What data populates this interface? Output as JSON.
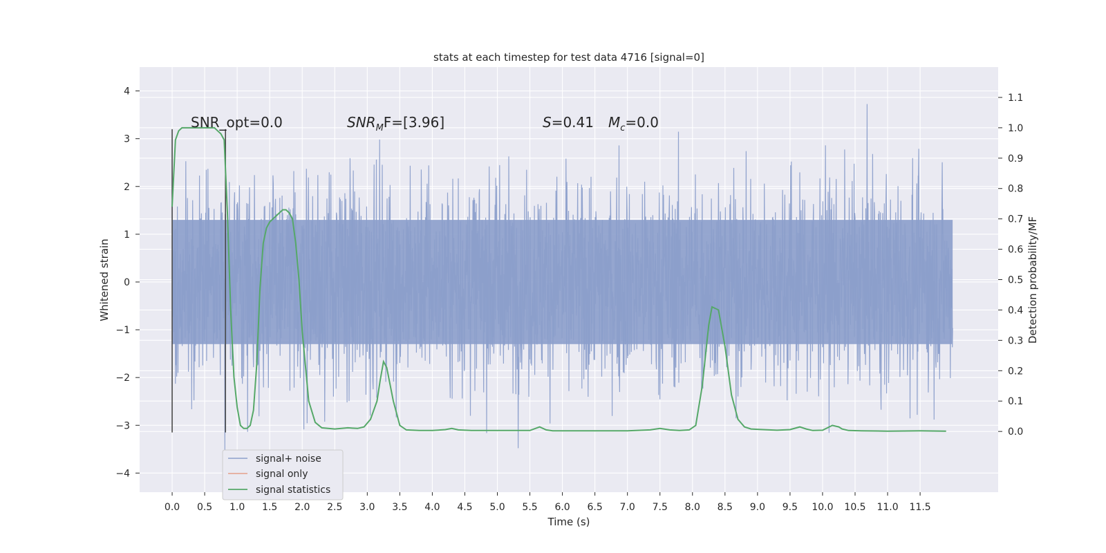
{
  "chart_data": {
    "type": "line",
    "title": "stats at each timestep for test data 4716 [signal=0]",
    "xlabel": "Time (s)",
    "ylabel": "Whitened strain",
    "ylabel_right": "Detection probability/MF",
    "xlim": [
      -0.5,
      12.7
    ],
    "ylim": [
      -4.4,
      4.5
    ],
    "ylim_right": [
      -0.2,
      1.2
    ],
    "x_ticks": [
      0.0,
      0.5,
      1.0,
      1.5,
      2.0,
      2.5,
      3.0,
      3.5,
      4.0,
      4.5,
      5.0,
      5.5,
      6.0,
      6.5,
      7.0,
      7.5,
      8.0,
      8.5,
      9.0,
      9.5,
      10.0,
      10.5,
      11.0,
      11.5
    ],
    "x_tick_labels": [
      "0.0",
      "0.5",
      "1.0",
      "1.5",
      "2.0",
      "2.5",
      "3.0",
      "3.5",
      "4.0",
      "4.5",
      "5.0",
      "5.5",
      "6.0",
      "6.5",
      "7.0",
      "7.5",
      "8.0",
      "8.5",
      "9.0",
      "9.5",
      "10.0",
      "10.5",
      "11.0",
      "11.5"
    ],
    "y_ticks": [
      -4,
      -3,
      -2,
      -1,
      0,
      1,
      2,
      3,
      4
    ],
    "y_tick_labels": [
      "−4",
      "−3",
      "−2",
      "−1",
      "0",
      "1",
      "2",
      "3",
      "4"
    ],
    "y_ticks_right": [
      0.0,
      0.1,
      0.2,
      0.3,
      0.4,
      0.5,
      0.6,
      0.7,
      0.8,
      0.9,
      1.0,
      1.1
    ],
    "y_tick_labels_right": [
      "0.0",
      "0.1",
      "0.2",
      "0.3",
      "0.4",
      "0.5",
      "0.6",
      "0.7",
      "0.8",
      "0.9",
      "1.0",
      "1.1"
    ],
    "grid": true,
    "legend_position": "lower-left",
    "annotations": {
      "snr_opt": "SNR_opt=0.0",
      "snr_mf_prefix": "SNR",
      "snr_mf_sub": "M",
      "snr_mf_suffix": "F=[3.96]",
      "s_var": "S",
      "s_value": "=0.41",
      "mc_var": "M",
      "mc_sub": "c",
      "mc_value": "=0.0"
    },
    "vertical_markers": [
      0.0,
      0.82
    ],
    "series": [
      {
        "name": "signal+ noise",
        "color": "#8c9fcb",
        "axis": "left",
        "x_range": [
          0.0,
          12.0
        ],
        "typical_band": [
          -1.3,
          1.3
        ],
        "extreme_range": [
          -4.0,
          4.1
        ]
      },
      {
        "name": "signal only",
        "color": "#e5a08a",
        "axis": "left",
        "values": []
      },
      {
        "name": "signal statistics",
        "color": "#55a868",
        "axis": "right",
        "x": [
          0.0,
          0.05,
          0.1,
          0.15,
          0.2,
          0.3,
          0.4,
          0.5,
          0.6,
          0.65,
          0.7,
          0.75,
          0.8,
          0.85,
          0.9,
          0.95,
          1.0,
          1.05,
          1.1,
          1.15,
          1.2,
          1.25,
          1.3,
          1.35,
          1.4,
          1.45,
          1.5,
          1.55,
          1.6,
          1.65,
          1.7,
          1.75,
          1.8,
          1.85,
          1.9,
          1.95,
          2.0,
          2.1,
          2.2,
          2.3,
          2.5,
          2.7,
          2.85,
          2.95,
          3.05,
          3.15,
          3.2,
          3.25,
          3.3,
          3.4,
          3.5,
          3.6,
          3.8,
          4.0,
          4.2,
          4.3,
          4.4,
          4.6,
          5.0,
          5.5,
          5.65,
          5.75,
          5.85,
          6.0,
          7.0,
          7.35,
          7.5,
          7.65,
          7.8,
          7.95,
          8.05,
          8.15,
          8.25,
          8.3,
          8.4,
          8.5,
          8.6,
          8.7,
          8.8,
          8.9,
          9.0,
          9.3,
          9.5,
          9.65,
          9.75,
          9.85,
          10.0,
          10.15,
          10.25,
          10.3,
          10.4,
          10.6,
          11.0,
          11.5,
          11.9
        ],
        "values": [
          0.74,
          0.96,
          0.99,
          1.0,
          1.0,
          1.0,
          1.0,
          1.0,
          1.0,
          1.0,
          0.99,
          0.98,
          0.96,
          0.72,
          0.4,
          0.18,
          0.08,
          0.02,
          0.01,
          0.01,
          0.02,
          0.07,
          0.22,
          0.47,
          0.62,
          0.67,
          0.69,
          0.7,
          0.71,
          0.72,
          0.73,
          0.73,
          0.72,
          0.7,
          0.62,
          0.5,
          0.33,
          0.1,
          0.03,
          0.012,
          0.008,
          0.012,
          0.01,
          0.015,
          0.04,
          0.1,
          0.17,
          0.23,
          0.21,
          0.1,
          0.02,
          0.005,
          0.003,
          0.003,
          0.006,
          0.01,
          0.005,
          0.003,
          0.003,
          0.003,
          0.015,
          0.005,
          0.002,
          0.002,
          0.002,
          0.005,
          0.01,
          0.005,
          0.003,
          0.005,
          0.02,
          0.15,
          0.35,
          0.41,
          0.4,
          0.28,
          0.12,
          0.04,
          0.015,
          0.008,
          0.007,
          0.004,
          0.006,
          0.015,
          0.008,
          0.003,
          0.004,
          0.02,
          0.015,
          0.008,
          0.003,
          0.002,
          0.001,
          0.002,
          0.001
        ]
      }
    ]
  }
}
